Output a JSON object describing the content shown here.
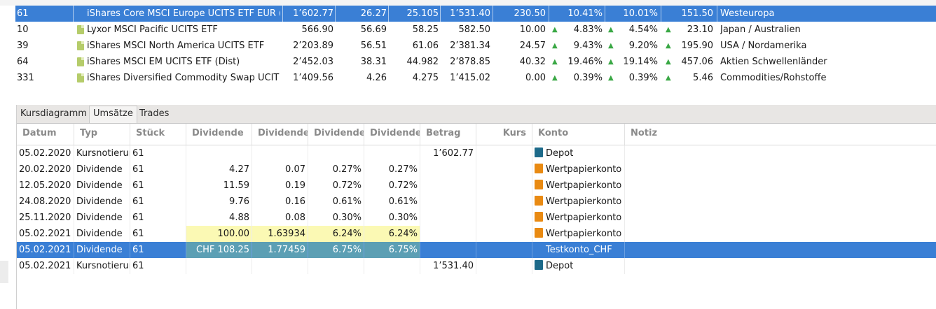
{
  "securities": {
    "rows": [
      {
        "id": "61",
        "name": "iShares Core MSCI Europe UCITS ETF EUR (",
        "c1": "1’602.77",
        "c2": "26.27",
        "c3": "25.105",
        "c4": "1’531.40",
        "c5": "230.50",
        "p1": "10.41%",
        "p2": "10.01%",
        "c6": "151.50",
        "region": "Westeuropa",
        "selected": true,
        "arrows": false
      },
      {
        "id": "10",
        "name": "Lyxor MSCI Pacific UCITS ETF",
        "c1": "566.90",
        "c2": "56.69",
        "c3": "58.25",
        "c4": "582.50",
        "c5": "10.00",
        "p1": "4.83%",
        "p2": "4.54%",
        "c6": "23.10",
        "region": "Japan / Australien",
        "selected": false,
        "arrows": true
      },
      {
        "id": "39",
        "name": "iShares MSCI North America UCITS ETF",
        "c1": "2’203.89",
        "c2": "56.51",
        "c3": "61.06",
        "c4": "2’381.34",
        "c5": "24.57",
        "p1": "9.43%",
        "p2": "9.20%",
        "c6": "195.90",
        "region": "USA / Nordamerika",
        "selected": false,
        "arrows": true
      },
      {
        "id": "64",
        "name": "iShares MSCI EM UCITS ETF (Dist)",
        "c1": "2’452.03",
        "c2": "38.31",
        "c3": "44.982",
        "c4": "2’878.85",
        "c5": "40.32",
        "p1": "19.46%",
        "p2": "19.14%",
        "c6": "457.06",
        "region": "Aktien Schwellenländer",
        "selected": false,
        "arrows": true
      },
      {
        "id": "331",
        "name": "iShares Diversified Commodity Swap UCIT",
        "c1": "1’409.56",
        "c2": "4.26",
        "c3": "4.275",
        "c4": "1’415.02",
        "c5": "0.00",
        "p1": "0.39%",
        "p2": "0.39%",
        "c6": "5.46",
        "region": "Commodities/Rohstoffe",
        "selected": false,
        "arrows": true
      }
    ],
    "arrow_glyph": "▲"
  },
  "tabs": [
    {
      "label": "Kursdiagramm",
      "active": false
    },
    {
      "label": "Umsätze",
      "active": true
    },
    {
      "label": "Trades",
      "active": false
    }
  ],
  "columns": [
    "Datum",
    "Typ",
    "Stück",
    "Dividende",
    "Dividende",
    "Dividende",
    "Dividende",
    "Betrag",
    "Kurs",
    "Konto",
    "Notiz"
  ],
  "transactions": [
    {
      "datum": "05.02.2020",
      "typ": "Kursnotierung",
      "stueck": "61",
      "d1": "",
      "d2": "",
      "d3": "",
      "d4": "",
      "betrag": "1’602.77",
      "kurs": "",
      "konto": "Depot",
      "konto_type": "depot",
      "notiz": "",
      "highlight": false,
      "selected": false
    },
    {
      "datum": "20.02.2020",
      "typ": "Dividende",
      "stueck": "61",
      "d1": "4.27",
      "d2": "0.07",
      "d3": "0.27%",
      "d4": "0.27%",
      "betrag": "",
      "kurs": "",
      "konto": "Wertpapierkonto",
      "konto_type": "konto",
      "notiz": "",
      "highlight": false,
      "selected": false
    },
    {
      "datum": "12.05.2020",
      "typ": "Dividende",
      "stueck": "61",
      "d1": "11.59",
      "d2": "0.19",
      "d3": "0.72%",
      "d4": "0.72%",
      "betrag": "",
      "kurs": "",
      "konto": "Wertpapierkonto",
      "konto_type": "konto",
      "notiz": "",
      "highlight": false,
      "selected": false
    },
    {
      "datum": "24.08.2020",
      "typ": "Dividende",
      "stueck": "61",
      "d1": "9.76",
      "d2": "0.16",
      "d3": "0.61%",
      "d4": "0.61%",
      "betrag": "",
      "kurs": "",
      "konto": "Wertpapierkonto",
      "konto_type": "konto",
      "notiz": "",
      "highlight": false,
      "selected": false
    },
    {
      "datum": "25.11.2020",
      "typ": "Dividende",
      "stueck": "61",
      "d1": "4.88",
      "d2": "0.08",
      "d3": "0.30%",
      "d4": "0.30%",
      "betrag": "",
      "kurs": "",
      "konto": "Wertpapierkonto",
      "konto_type": "konto",
      "notiz": "",
      "highlight": false,
      "selected": false
    },
    {
      "datum": "05.02.2021",
      "typ": "Dividende",
      "stueck": "61",
      "d1": "100.00",
      "d2": "1.63934",
      "d3": "6.24%",
      "d4": "6.24%",
      "betrag": "",
      "kurs": "",
      "konto": "Wertpapierkonto",
      "konto_type": "konto",
      "notiz": "",
      "highlight": true,
      "selected": false
    },
    {
      "datum": "05.02.2021",
      "typ": "Dividende",
      "stueck": "61",
      "d1": "CHF 108.25",
      "d2": "1.77459",
      "d3": "6.75%",
      "d4": "6.75%",
      "betrag": "",
      "kurs": "",
      "konto": "Testkonto_CHF",
      "konto_type": "chf",
      "notiz": "",
      "highlight": true,
      "selected": true
    },
    {
      "datum": "05.02.2021",
      "typ": "Kursnotierung",
      "stueck": "61",
      "d1": "",
      "d2": "",
      "d3": "",
      "d4": "",
      "betrag": "1’531.40",
      "kurs": "",
      "konto": "Depot",
      "konto_type": "depot",
      "notiz": "",
      "highlight": false,
      "selected": false
    }
  ]
}
